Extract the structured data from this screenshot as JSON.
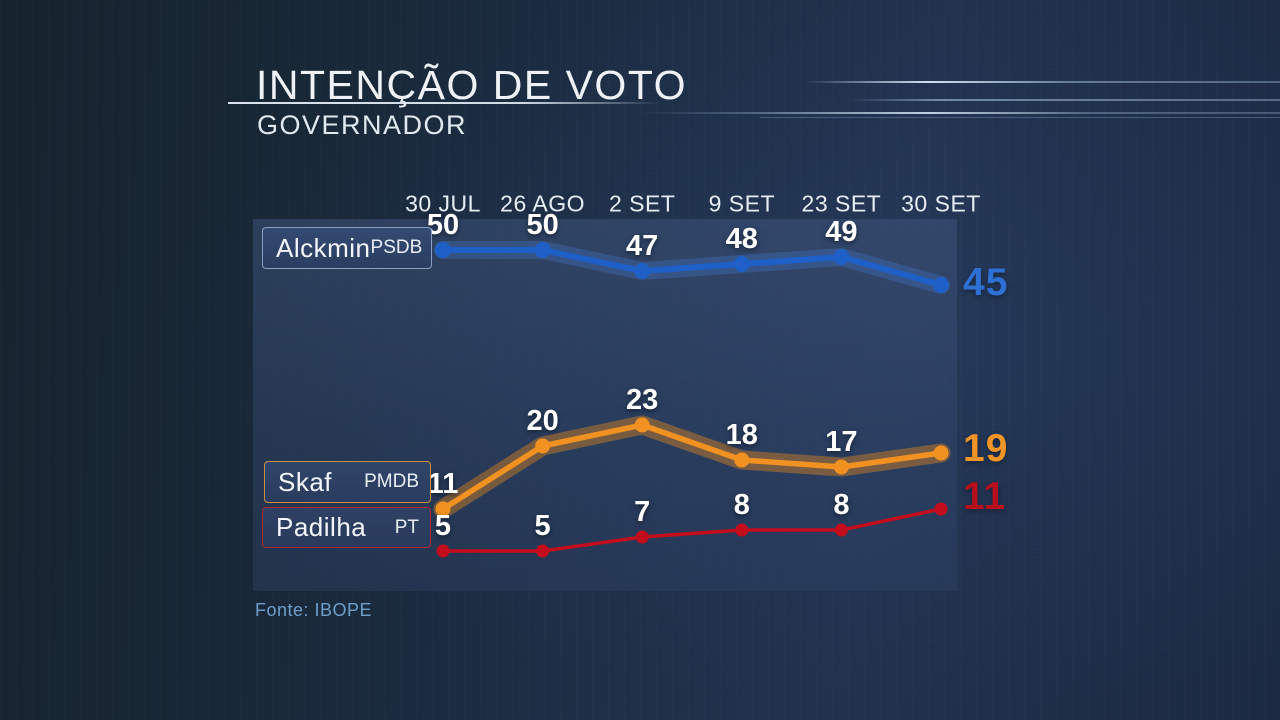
{
  "header": {
    "title": "INTENÇÃO DE VOTO",
    "subtitle": "GOVERNADOR"
  },
  "footer": {
    "source": "Fonte: IBOPE"
  },
  "chart_data": {
    "type": "line",
    "title": "Intenção de voto — Governador",
    "categories": [
      "30 JUL",
      "26 AGO",
      "2 SET",
      "9 SET",
      "23 SET",
      "30 SET"
    ],
    "series": [
      {
        "name": "Alckmin",
        "party": "PSDB",
        "color": "#1e5fc8",
        "glow_color": "rgba(72,122,206,0.32)",
        "end_label_color": "#2e6fd4",
        "values": [
          50,
          50,
          47,
          48,
          49,
          45
        ]
      },
      {
        "name": "Skaf",
        "party": "PMDB",
        "color": "#f09121",
        "glow_color": "rgba(186,118,42,0.55)",
        "end_label_color": "#ef9426",
        "values": [
          11,
          20,
          23,
          18,
          17,
          19
        ]
      },
      {
        "name": "Padilha",
        "party": "PT",
        "color": "#c30d1d",
        "glow_color": "none",
        "end_label_color": "#b80f1d",
        "values": [
          5,
          5,
          7,
          8,
          8,
          11
        ]
      }
    ],
    "value_label_color": "#ffffff",
    "grid": false,
    "legend_position": "inline-left",
    "ylim": [
      0,
      55
    ]
  }
}
